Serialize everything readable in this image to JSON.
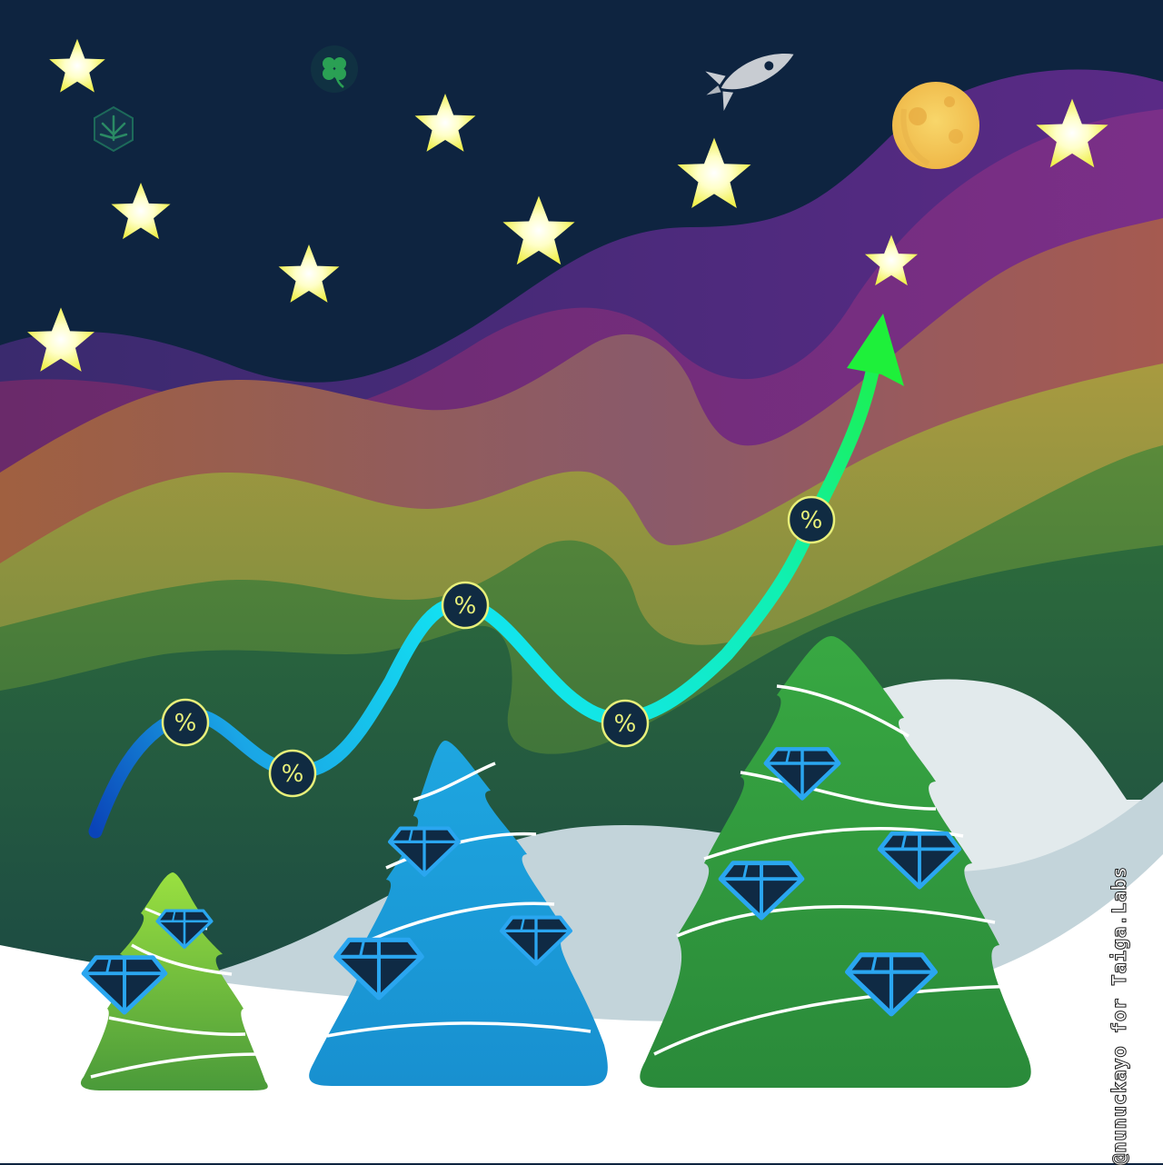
{
  "credit": {
    "text": "@nunuckayo for Taiga.Labs"
  },
  "colors": {
    "sky": "#0e2440",
    "star": "#f2f25a",
    "star_glow": "#ffffff",
    "moon": "#f4c75a",
    "snow": "#ffffff",
    "snow_shadow": "#c3d4da",
    "tree_light_green": "#8ad63a",
    "tree_blue": "#169ed6",
    "tree_green": "#2f9a3a",
    "gem_fill": "#0f2a44",
    "gem_stroke": "#2aa6f0",
    "arrow_start": "#0a44b8",
    "arrow_mid": "#12e4f2",
    "arrow_end": "#1ef03a",
    "badge_fill": "#102b42",
    "badge_stroke": "#e8f07a"
  },
  "icons": {
    "badge": "percent-icon",
    "gem": "diamond-icon",
    "star": "star-icon",
    "moon": "moon-icon",
    "rocket": "rocket-icon",
    "clover": "clover-icon",
    "leaf": "cannabis-leaf-icon"
  },
  "badges": [
    {
      "name": "percent-badge-1",
      "symbol": "%"
    },
    {
      "name": "percent-badge-2",
      "symbol": "%"
    },
    {
      "name": "percent-badge-3",
      "symbol": "%"
    },
    {
      "name": "percent-badge-4",
      "symbol": "%"
    },
    {
      "name": "percent-badge-5",
      "symbol": "%"
    }
  ]
}
